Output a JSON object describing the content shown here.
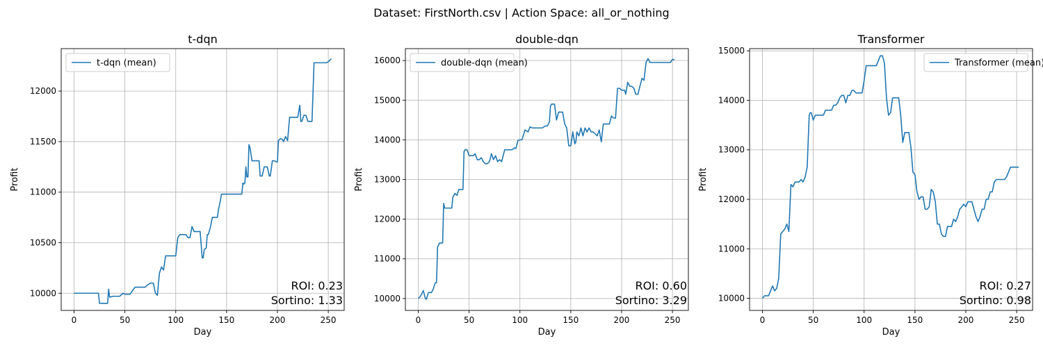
{
  "figure": {
    "title": "Dataset: FirstNorth.csv | Action Space: all_or_nothing"
  },
  "colors": {
    "line": "#1f77b4",
    "grid": "#b0b0b0",
    "axes": "#000000",
    "legend_border": "#cccccc"
  },
  "chart_data": [
    {
      "type": "line",
      "title": "t-dqn",
      "xlabel": "Day",
      "ylabel": "Profit",
      "xlim": [
        -12.65,
        265.65
      ],
      "ylim": [
        9830,
        12420
      ],
      "xticks": [
        0,
        50,
        100,
        150,
        200,
        250
      ],
      "xtick_labels": [
        "0",
        "50",
        "100",
        "150",
        "200",
        "250"
      ],
      "yticks": [
        10000,
        10500,
        11000,
        11500,
        12000
      ],
      "ytick_labels": [
        "10000",
        "10500",
        "11000",
        "11500",
        "12000"
      ],
      "grid": true,
      "legend_position": "upper left",
      "series": [
        {
          "name": "t-dqn (mean)",
          "x": [
            0,
            5,
            10,
            15,
            20,
            24,
            25,
            27,
            30,
            33,
            34,
            35,
            38,
            40,
            45,
            48,
            50,
            55,
            60,
            62,
            65,
            70,
            72,
            75,
            78,
            80,
            82,
            83,
            84,
            85,
            86,
            88,
            90,
            92,
            95,
            98,
            100,
            102,
            104,
            106,
            108,
            110,
            112,
            114,
            116,
            118,
            120,
            122,
            124,
            126,
            127,
            128,
            130,
            131,
            132,
            134,
            136,
            138,
            140,
            141,
            142,
            143,
            145,
            148,
            150,
            155,
            160,
            165,
            166,
            167,
            168,
            169,
            170,
            171,
            172,
            173,
            175,
            178,
            180,
            182,
            183,
            184,
            185,
            187,
            190,
            192,
            193,
            195,
            197,
            199,
            200,
            201,
            203,
            205,
            206,
            208,
            210,
            212,
            214,
            216,
            217,
            220,
            222,
            223,
            224,
            226,
            228,
            230,
            232,
            234,
            236,
            238,
            240,
            241,
            242,
            244,
            246,
            248,
            250,
            252,
            253
          ],
          "y": [
            10000,
            10000,
            10000,
            10000,
            10000,
            10000,
            9900,
            9900,
            9900,
            9900,
            10040,
            9960,
            9970,
            9970,
            9970,
            10000,
            9990,
            9990,
            10060,
            10060,
            10060,
            10060,
            10080,
            10100,
            10100,
            10000,
            9980,
            10100,
            10200,
            10230,
            10260,
            10230,
            10370,
            10370,
            10370,
            10370,
            10370,
            10550,
            10580,
            10580,
            10580,
            10580,
            10550,
            10550,
            10660,
            10610,
            10610,
            10610,
            10610,
            10350,
            10350,
            10430,
            10450,
            10580,
            10580,
            10650,
            10750,
            10750,
            10750,
            10750,
            10830,
            10870,
            10980,
            10980,
            10980,
            10980,
            10980,
            10980,
            11090,
            11080,
            11090,
            11250,
            11150,
            11150,
            11470,
            11440,
            11310,
            11310,
            11310,
            11310,
            11160,
            11160,
            11160,
            11250,
            11250,
            11160,
            11160,
            11310,
            11310,
            11300,
            11300,
            11510,
            11530,
            11520,
            11500,
            11550,
            11510,
            11740,
            11740,
            11740,
            11740,
            11740,
            11860,
            11700,
            11700,
            11760,
            11760,
            11700,
            11700,
            11700,
            12280,
            12280,
            12280,
            12280,
            12280,
            12280,
            12280,
            12280,
            12290,
            12310,
            12320
          ]
        }
      ],
      "annotations": {
        "roi": "ROI: 0.23",
        "sortino": "Sortino: 1.33"
      }
    },
    {
      "type": "line",
      "title": "double-dqn",
      "xlabel": "Day",
      "ylabel": "Profit",
      "xlim": [
        -12.65,
        265.65
      ],
      "ylim": [
        9700,
        16300
      ],
      "xticks": [
        0,
        50,
        100,
        150,
        200,
        250
      ],
      "xtick_labels": [
        "0",
        "50",
        "100",
        "150",
        "200",
        "250"
      ],
      "yticks": [
        10000,
        11000,
        12000,
        13000,
        14000,
        15000,
        16000
      ],
      "ytick_labels": [
        "10000",
        "11000",
        "12000",
        "13000",
        "14000",
        "15000",
        "16000"
      ],
      "grid": true,
      "legend_position": "upper left",
      "series": [
        {
          "name": "double-dqn (mean)",
          "x": [
            0,
            2,
            4,
            5,
            7,
            8,
            10,
            13,
            15,
            16,
            17,
            18,
            19,
            20,
            21,
            22,
            24,
            25,
            26,
            28,
            30,
            33,
            34,
            36,
            38,
            40,
            42,
            44,
            45,
            46,
            47,
            48,
            50,
            52,
            54,
            56,
            58,
            60,
            62,
            64,
            66,
            68,
            70,
            72,
            74,
            76,
            78,
            80,
            82,
            85,
            88,
            90,
            92,
            94,
            95,
            96,
            98,
            100,
            102,
            105,
            108,
            110,
            112,
            115,
            118,
            120,
            122,
            125,
            127,
            129,
            130,
            131,
            132,
            134,
            136,
            138,
            140,
            142,
            144,
            146,
            148,
            150,
            152,
            154,
            155,
            156,
            158,
            160,
            162,
            164,
            166,
            168,
            170,
            172,
            174,
            176,
            178,
            180,
            182,
            184,
            186,
            188,
            190,
            192,
            194,
            196,
            198,
            200,
            203,
            204,
            206,
            208,
            210,
            212,
            214,
            216,
            218,
            220,
            222,
            224,
            226,
            228,
            230,
            232,
            234,
            236,
            238,
            240,
            242,
            244,
            246,
            248,
            250,
            252
          ],
          "y": [
            10000,
            10050,
            10150,
            10200,
            10000,
            9980,
            10150,
            10150,
            10250,
            10350,
            10400,
            10400,
            11300,
            11350,
            11400,
            11400,
            11400,
            12400,
            12280,
            12280,
            12280,
            12280,
            12550,
            12650,
            12600,
            12750,
            12750,
            12750,
            13700,
            13750,
            13750,
            13750,
            13600,
            13600,
            13600,
            13650,
            13500,
            13500,
            13550,
            13450,
            13400,
            13400,
            13450,
            13650,
            13500,
            13600,
            13450,
            13500,
            13450,
            13750,
            13750,
            13750,
            13750,
            13780,
            13800,
            13780,
            13980,
            14000,
            14000,
            14250,
            14200,
            14330,
            14300,
            14300,
            14300,
            14300,
            14300,
            14350,
            14350,
            14450,
            14850,
            14900,
            14900,
            14900,
            14500,
            14700,
            14700,
            14700,
            14400,
            14300,
            13850,
            13850,
            14200,
            13900,
            13950,
            14200,
            14100,
            14300,
            14100,
            14300,
            14200,
            14300,
            14200,
            14200,
            14150,
            14100,
            14250,
            13950,
            14400,
            14400,
            14400,
            14400,
            14600,
            14550,
            14550,
            15300,
            15300,
            15250,
            15250,
            15150,
            15450,
            15350,
            15350,
            15300,
            15150,
            15150,
            15350,
            15550,
            15500,
            15950,
            16050,
            15950,
            15950,
            15950,
            15950,
            15950,
            15950,
            15950,
            15950,
            15950,
            15950,
            15950,
            16030,
            16020
          ]
        }
      ],
      "annotations": {
        "roi": "ROI: 0.60",
        "sortino": "Sortino: 3.29"
      }
    },
    {
      "type": "line",
      "title": "Transformer",
      "xlabel": "Day",
      "ylabel": "Profit",
      "xlim": [
        -12.65,
        265.65
      ],
      "ylim": [
        9755,
        15045
      ],
      "xticks": [
        0,
        50,
        100,
        150,
        200,
        250
      ],
      "xtick_labels": [
        "0",
        "50",
        "100",
        "150",
        "200",
        "250"
      ],
      "yticks": [
        10000,
        11000,
        12000,
        13000,
        14000,
        15000
      ],
      "ytick_labels": [
        "10000",
        "11000",
        "12000",
        "13000",
        "14000",
        "15000"
      ],
      "grid": true,
      "legend_position": "upper right",
      "series": [
        {
          "name": "Transformer (mean)",
          "x": [
            0,
            2,
            4,
            6,
            8,
            10,
            12,
            14,
            16,
            18,
            20,
            22,
            24,
            26,
            28,
            30,
            32,
            34,
            36,
            38,
            40,
            42,
            44,
            46,
            47,
            48,
            50,
            52,
            54,
            56,
            58,
            60,
            62,
            64,
            66,
            68,
            70,
            72,
            74,
            76,
            78,
            80,
            82,
            84,
            86,
            88,
            90,
            92,
            94,
            96,
            98,
            100,
            102,
            104,
            106,
            108,
            110,
            112,
            114,
            116,
            118,
            120,
            122,
            124,
            126,
            128,
            130,
            132,
            134,
            136,
            138,
            140,
            142,
            144,
            146,
            148,
            150,
            152,
            154,
            156,
            158,
            160,
            162,
            164,
            166,
            168,
            170,
            172,
            174,
            176,
            178,
            180,
            182,
            184,
            186,
            188,
            190,
            192,
            194,
            196,
            198,
            200,
            202,
            204,
            206,
            208,
            210,
            212,
            214,
            216,
            218,
            220,
            222,
            224,
            226,
            228,
            230,
            232,
            234,
            236,
            238,
            240,
            242,
            244,
            246,
            248,
            250,
            252
          ],
          "y": [
            10000,
            10050,
            10050,
            10050,
            10150,
            10250,
            10150,
            10200,
            10400,
            11300,
            11350,
            11400,
            11500,
            11350,
            12300,
            12250,
            12350,
            12350,
            12350,
            12400,
            12350,
            12450,
            12650,
            13700,
            13750,
            13750,
            13600,
            13700,
            13700,
            13700,
            13700,
            13700,
            13800,
            13800,
            13800,
            13800,
            13900,
            13900,
            13950,
            14050,
            14100,
            14100,
            13950,
            14100,
            14100,
            14200,
            14200,
            14150,
            14150,
            14150,
            14150,
            14400,
            14700,
            14700,
            14700,
            14700,
            14700,
            14700,
            14800,
            14900,
            14900,
            14750,
            14050,
            13700,
            13750,
            14050,
            14050,
            14050,
            14050,
            13700,
            13150,
            13350,
            13350,
            13350,
            13050,
            12550,
            12500,
            12150,
            12000,
            12050,
            12050,
            11800,
            11800,
            11850,
            12200,
            12150,
            11950,
            11500,
            11500,
            11300,
            11250,
            11250,
            11450,
            11450,
            11450,
            11600,
            11550,
            11650,
            11800,
            11850,
            11900,
            11850,
            11950,
            11950,
            11950,
            11800,
            11650,
            11550,
            11650,
            11800,
            11800,
            12000,
            12000,
            12150,
            12150,
            12350,
            12400,
            12400,
            12400,
            12400,
            12400,
            12450,
            12550,
            12650,
            12650,
            12650,
            12650,
            12650
          ]
        }
      ],
      "annotations": {
        "roi": "ROI: 0.27",
        "sortino": "Sortino: 0.98"
      }
    }
  ]
}
